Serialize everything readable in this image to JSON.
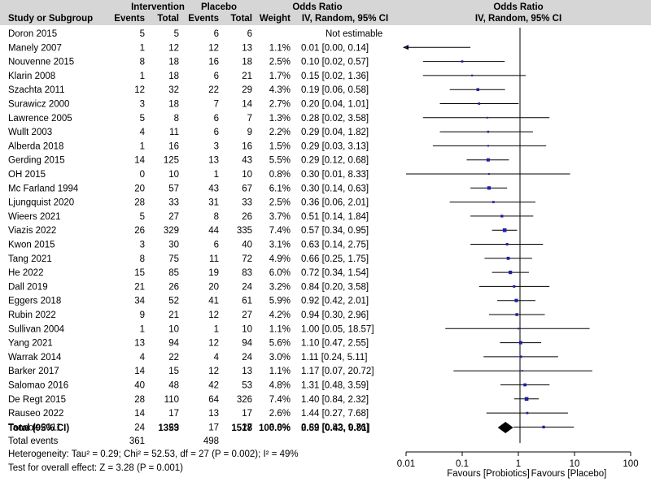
{
  "header": {
    "group_intervention": "Intervention",
    "group_placebo": "Placebo",
    "odds_ratio_left": "Odds Ratio",
    "odds_ratio_right": "Odds Ratio",
    "study": "Study or Subgroup",
    "events_1": "Events",
    "total_1": "Total",
    "events_2": "Events",
    "total_2": "Total",
    "weight": "Weight",
    "method_left": "IV, Random, 95% CI",
    "method_right": "IV, Random, 95% CI"
  },
  "summary": {
    "label": "Total (95% CI)",
    "total_intervention": "1353",
    "total_placebo": "1518",
    "weight": "100.0%",
    "ci_text": "0.59 [0.43, 0.81]",
    "events_label": "Total events",
    "events_intervention": "361",
    "events_placebo": "498",
    "heterogeneity": "Heterogeneity: Tau² = 0.29; Chi² = 52.53, df = 27 (P = 0.002); I² = 49%",
    "overall_effect": "Test for overall effect: Z = 3.28 (P = 0.001)"
  },
  "axis": {
    "ticks": [
      "0.01",
      "0.1",
      "1",
      "10",
      "100"
    ],
    "favours_left": "Favours [Probiotics]",
    "favours_right": "Favours [Placebo]"
  },
  "colors": {
    "marker": "#1f1fa8",
    "line": "#000000"
  },
  "chart_data": {
    "type": "forest",
    "x_scale": "log",
    "xlim": [
      0.01,
      100
    ],
    "reference_line": 1,
    "studies": [
      {
        "name": "Doron 2015",
        "e1": "5",
        "n1": "5",
        "e2": "6",
        "n2": "6",
        "weight": "",
        "ci": "Not estimable",
        "or": null,
        "lo": null,
        "hi": null
      },
      {
        "name": "Manely 2007",
        "e1": "1",
        "n1": "12",
        "e2": "12",
        "n2": "13",
        "weight": "1.1%",
        "ci": "0.01 [0.00, 0.14]",
        "or": 0.01,
        "lo": 0.0008,
        "hi": 0.14
      },
      {
        "name": "Nouvenne 2015",
        "e1": "8",
        "n1": "18",
        "e2": "16",
        "n2": "18",
        "weight": "2.5%",
        "ci": "0.10 [0.02, 0.57]",
        "or": 0.1,
        "lo": 0.02,
        "hi": 0.57
      },
      {
        "name": "Klarin 2008",
        "e1": "1",
        "n1": "18",
        "e2": "6",
        "n2": "21",
        "weight": "1.7%",
        "ci": "0.15 [0.02, 1.36]",
        "or": 0.15,
        "lo": 0.02,
        "hi": 1.36
      },
      {
        "name": "Szachta 2011",
        "e1": "12",
        "n1": "32",
        "e2": "22",
        "n2": "29",
        "weight": "4.3%",
        "ci": "0.19 [0.06, 0.58]",
        "or": 0.19,
        "lo": 0.06,
        "hi": 0.58
      },
      {
        "name": "Surawicz 2000",
        "e1": "3",
        "n1": "18",
        "e2": "7",
        "n2": "14",
        "weight": "2.7%",
        "ci": "0.20 [0.04, 1.01]",
        "or": 0.2,
        "lo": 0.04,
        "hi": 1.01
      },
      {
        "name": "Lawrence 2005",
        "e1": "5",
        "n1": "8",
        "e2": "6",
        "n2": "7",
        "weight": "1.3%",
        "ci": "0.28 [0.02, 3.58]",
        "or": 0.28,
        "lo": 0.02,
        "hi": 3.58
      },
      {
        "name": "Wullt 2003",
        "e1": "4",
        "n1": "11",
        "e2": "6",
        "n2": "9",
        "weight": "2.2%",
        "ci": "0.29 [0.04, 1.82]",
        "or": 0.29,
        "lo": 0.04,
        "hi": 1.82
      },
      {
        "name": "Alberda 2018",
        "e1": "1",
        "n1": "16",
        "e2": "3",
        "n2": "16",
        "weight": "1.5%",
        "ci": "0.29 [0.03, 3.13]",
        "or": 0.29,
        "lo": 0.03,
        "hi": 3.13
      },
      {
        "name": "Gerding 2015",
        "e1": "14",
        "n1": "125",
        "e2": "13",
        "n2": "43",
        "weight": "5.5%",
        "ci": "0.29 [0.12, 0.68]",
        "or": 0.29,
        "lo": 0.12,
        "hi": 0.68
      },
      {
        "name": "OH 2015",
        "e1": "0",
        "n1": "10",
        "e2": "1",
        "n2": "10",
        "weight": "0.8%",
        "ci": "0.30 [0.01, 8.33]",
        "or": 0.3,
        "lo": 0.01,
        "hi": 8.33
      },
      {
        "name": "Mc Farland 1994",
        "e1": "20",
        "n1": "57",
        "e2": "43",
        "n2": "67",
        "weight": "6.1%",
        "ci": "0.30 [0.14, 0.63]",
        "or": 0.3,
        "lo": 0.14,
        "hi": 0.63
      },
      {
        "name": "Ljungquist 2020",
        "e1": "28",
        "n1": "33",
        "e2": "31",
        "n2": "33",
        "weight": "2.5%",
        "ci": "0.36 [0.06, 2.01]",
        "or": 0.36,
        "lo": 0.06,
        "hi": 2.01
      },
      {
        "name": "Wieers 2021",
        "e1": "5",
        "n1": "27",
        "e2": "8",
        "n2": "26",
        "weight": "3.7%",
        "ci": "0.51 [0.14, 1.84]",
        "or": 0.51,
        "lo": 0.14,
        "hi": 1.84
      },
      {
        "name": "Viazis 2022",
        "e1": "26",
        "n1": "329",
        "e2": "44",
        "n2": "335",
        "weight": "7.4%",
        "ci": "0.57 [0.34, 0.95]",
        "or": 0.57,
        "lo": 0.34,
        "hi": 0.95
      },
      {
        "name": "Kwon 2015",
        "e1": "3",
        "n1": "30",
        "e2": "6",
        "n2": "40",
        "weight": "3.1%",
        "ci": "0.63 [0.14, 2.75]",
        "or": 0.63,
        "lo": 0.14,
        "hi": 2.75
      },
      {
        "name": "Tang 2021",
        "e1": "8",
        "n1": "75",
        "e2": "11",
        "n2": "72",
        "weight": "4.9%",
        "ci": "0.66 [0.25, 1.75]",
        "or": 0.66,
        "lo": 0.25,
        "hi": 1.75
      },
      {
        "name": "He 2022",
        "e1": "15",
        "n1": "85",
        "e2": "19",
        "n2": "83",
        "weight": "6.0%",
        "ci": "0.72 [0.34, 1.54]",
        "or": 0.72,
        "lo": 0.34,
        "hi": 1.54
      },
      {
        "name": "Dall 2019",
        "e1": "21",
        "n1": "26",
        "e2": "20",
        "n2": "24",
        "weight": "3.2%",
        "ci": "0.84 [0.20, 3.58]",
        "or": 0.84,
        "lo": 0.2,
        "hi": 3.58
      },
      {
        "name": "Eggers 2018",
        "e1": "34",
        "n1": "52",
        "e2": "41",
        "n2": "61",
        "weight": "5.9%",
        "ci": "0.92 [0.42, 2.01]",
        "or": 0.92,
        "lo": 0.42,
        "hi": 2.01
      },
      {
        "name": "Rubin 2022",
        "e1": "9",
        "n1": "21",
        "e2": "12",
        "n2": "27",
        "weight": "4.2%",
        "ci": "0.94 [0.30, 2.96]",
        "or": 0.94,
        "lo": 0.3,
        "hi": 2.96
      },
      {
        "name": "Sullivan 2004",
        "e1": "1",
        "n1": "10",
        "e2": "1",
        "n2": "10",
        "weight": "1.1%",
        "ci": "1.00 [0.05, 18.57]",
        "or": 1.0,
        "lo": 0.05,
        "hi": 18.57
      },
      {
        "name": "Yang 2021",
        "e1": "13",
        "n1": "94",
        "e2": "12",
        "n2": "94",
        "weight": "5.6%",
        "ci": "1.10 [0.47, 2.55]",
        "or": 1.1,
        "lo": 0.47,
        "hi": 2.55
      },
      {
        "name": "Warrak 2014",
        "e1": "4",
        "n1": "22",
        "e2": "4",
        "n2": "24",
        "weight": "3.0%",
        "ci": "1.11 [0.24, 5.11]",
        "or": 1.11,
        "lo": 0.24,
        "hi": 5.11
      },
      {
        "name": "Barker 2017",
        "e1": "14",
        "n1": "15",
        "e2": "12",
        "n2": "13",
        "weight": "1.1%",
        "ci": "1.17 [0.07, 20.72]",
        "or": 1.17,
        "lo": 0.07,
        "hi": 20.72
      },
      {
        "name": "Salomao 2016",
        "e1": "40",
        "n1": "48",
        "e2": "42",
        "n2": "53",
        "weight": "4.8%",
        "ci": "1.31 [0.48, 3.59]",
        "or": 1.31,
        "lo": 0.48,
        "hi": 3.59
      },
      {
        "name": "De Regt 2015",
        "e1": "28",
        "n1": "110",
        "e2": "64",
        "n2": "326",
        "weight": "7.4%",
        "ci": "1.40 [0.84, 2.32]",
        "or": 1.4,
        "lo": 0.84,
        "hi": 2.32
      },
      {
        "name": "Rauseo 2022",
        "e1": "14",
        "n1": "17",
        "e2": "13",
        "n2": "17",
        "weight": "2.6%",
        "ci": "1.44 [0.27, 7.68]",
        "or": 1.44,
        "lo": 0.27,
        "hi": 7.68
      },
      {
        "name": "Tannok 2011",
        "e1": "24",
        "n1": "29",
        "e2": "17",
        "n2": "27",
        "weight": "3.8%",
        "ci": "2.82 [0.82, 9.76]",
        "or": 2.82,
        "lo": 0.82,
        "hi": 9.76
      }
    ],
    "pooled": {
      "or": 0.59,
      "lo": 0.43,
      "hi": 0.81
    }
  }
}
